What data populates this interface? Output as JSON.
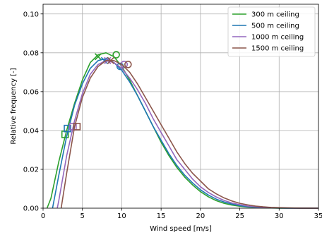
{
  "chart_data": {
    "type": "line",
    "title": "",
    "xlabel": "Wind speed [m/s]",
    "ylabel": "Relative frequency [-]",
    "xlim": [
      0,
      35
    ],
    "ylim": [
      0,
      0.105
    ],
    "xticks": [
      0,
      5,
      10,
      15,
      20,
      25,
      30,
      35
    ],
    "yticks": [
      0.0,
      0.02,
      0.04,
      0.06,
      0.08,
      0.1
    ],
    "ytick_labels": [
      "0.00",
      "0.02",
      "0.04",
      "0.06",
      "0.08",
      "0.10"
    ],
    "grid": true,
    "legend_position": "top-right",
    "series": [
      {
        "name": "300 m ceiling",
        "color": "#2ca02c",
        "x": [
          0.5,
          1,
          2,
          3,
          4,
          5,
          6,
          7,
          8,
          9,
          10,
          11,
          12,
          13,
          14,
          15,
          16,
          17,
          18,
          19,
          20,
          21,
          22,
          23,
          24,
          25,
          26,
          27,
          28,
          29,
          30,
          31,
          32,
          33,
          34,
          35
        ],
        "values": [
          0.0,
          0.005,
          0.024,
          0.04,
          0.054,
          0.066,
          0.075,
          0.079,
          0.08,
          0.078,
          0.073,
          0.066,
          0.058,
          0.05,
          0.042,
          0.034,
          0.027,
          0.021,
          0.016,
          0.012,
          0.0085,
          0.0059,
          0.0039,
          0.0025,
          0.0016,
          0.001,
          0.0006,
          0.00035,
          0.0002,
          0.0001,
          5e-05,
          2e-05,
          0.0,
          0.0,
          0.0,
          0.0
        ],
        "markers": [
          {
            "symbol": "square",
            "x": 2.8,
            "y": 0.038
          },
          {
            "symbol": "x",
            "x": 7.0,
            "y": 0.078
          },
          {
            "symbol": "circle",
            "x": 9.3,
            "y": 0.079
          }
        ]
      },
      {
        "name": "500 m ceiling",
        "color": "#1f77b4",
        "x": [
          1.2,
          2,
          3,
          4,
          5,
          6,
          7,
          8,
          9,
          10,
          11,
          12,
          13,
          14,
          15,
          16,
          17,
          18,
          19,
          20,
          21,
          22,
          23,
          24,
          25,
          26,
          27,
          28,
          29,
          30,
          31,
          32,
          33,
          34,
          35
        ],
        "values": [
          0.0,
          0.017,
          0.037,
          0.053,
          0.064,
          0.072,
          0.076,
          0.077,
          0.075,
          0.071,
          0.065,
          0.058,
          0.05,
          0.042,
          0.035,
          0.028,
          0.022,
          0.017,
          0.013,
          0.0095,
          0.0068,
          0.0047,
          0.0032,
          0.0021,
          0.0013,
          0.0008,
          0.0005,
          0.0003,
          0.00015,
          8e-05,
          4e-05,
          2e-05,
          0.0,
          0.0,
          0.0
        ],
        "markers": [
          {
            "symbol": "square",
            "x": 3.1,
            "y": 0.041
          },
          {
            "symbol": "x",
            "x": 7.8,
            "y": 0.076
          },
          {
            "symbol": "circle",
            "x": 9.8,
            "y": 0.073
          }
        ]
      },
      {
        "name": "1000 m ceiling",
        "color": "#9467bd",
        "x": [
          1.8,
          2,
          3,
          4,
          5,
          6,
          7,
          8,
          9,
          10,
          11,
          12,
          13,
          14,
          15,
          16,
          17,
          18,
          19,
          20,
          21,
          22,
          23,
          24,
          25,
          26,
          27,
          28,
          29,
          30,
          31,
          32,
          33,
          34,
          35
        ],
        "values": [
          0.0,
          0.004,
          0.027,
          0.045,
          0.059,
          0.069,
          0.074,
          0.076,
          0.075,
          0.072,
          0.067,
          0.061,
          0.054,
          0.046,
          0.039,
          0.032,
          0.025,
          0.02,
          0.015,
          0.011,
          0.0081,
          0.0058,
          0.004,
          0.0027,
          0.0018,
          0.0011,
          0.0007,
          0.0004,
          0.00025,
          0.00014,
          8e-05,
          4e-05,
          2e-05,
          0.0,
          0.0
        ],
        "markers": [
          {
            "symbol": "square",
            "x": 3.8,
            "y": 0.042
          },
          {
            "symbol": "x",
            "x": 8.2,
            "y": 0.076
          },
          {
            "symbol": "circle",
            "x": 10.3,
            "y": 0.074
          }
        ]
      },
      {
        "name": "1500 m ceiling",
        "color": "#8c564b",
        "x": [
          2.3,
          3,
          4,
          5,
          6,
          7,
          8,
          9,
          10,
          11,
          12,
          13,
          14,
          15,
          16,
          17,
          18,
          19,
          20,
          21,
          22,
          23,
          24,
          25,
          26,
          27,
          28,
          29,
          30,
          31,
          32,
          33,
          34,
          35
        ],
        "values": [
          0.0,
          0.018,
          0.042,
          0.057,
          0.067,
          0.073,
          0.076,
          0.076,
          0.074,
          0.07,
          0.064,
          0.057,
          0.05,
          0.043,
          0.036,
          0.029,
          0.023,
          0.018,
          0.014,
          0.01,
          0.0074,
          0.0053,
          0.0037,
          0.0025,
          0.0017,
          0.0011,
          0.0007,
          0.0004,
          0.00025,
          0.00014,
          8e-05,
          4e-05,
          2e-05,
          0.0
        ],
        "markers": [
          {
            "symbol": "square",
            "x": 4.3,
            "y": 0.042
          },
          {
            "symbol": "x",
            "x": 8.6,
            "y": 0.076
          },
          {
            "symbol": "circle",
            "x": 10.8,
            "y": 0.074
          }
        ]
      }
    ]
  }
}
